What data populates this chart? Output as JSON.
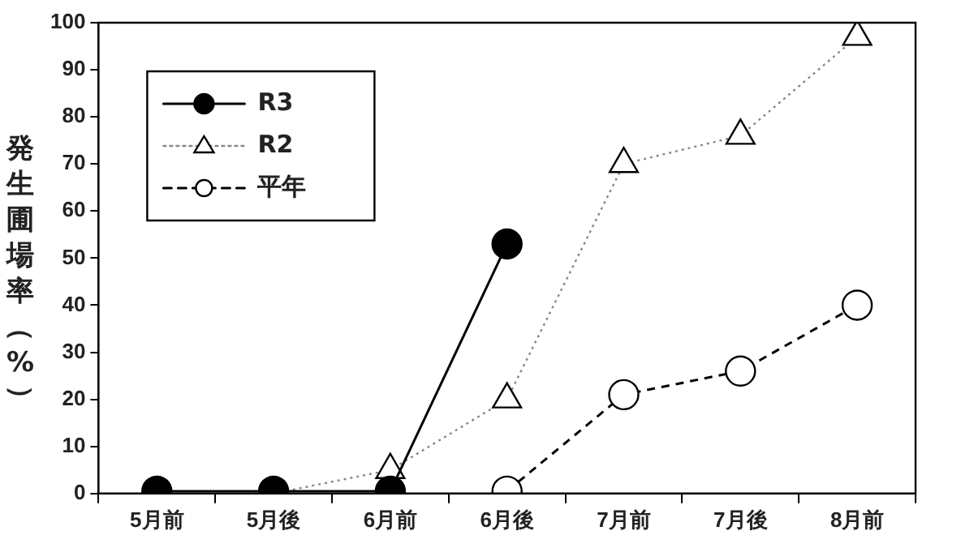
{
  "chart_data": {
    "type": "line",
    "ylabel": "発生圃場率（%）",
    "categories": [
      "5月前",
      "5月後",
      "6月前",
      "6月後",
      "7月前",
      "7月後",
      "8月前"
    ],
    "series": [
      {
        "name": "R3",
        "color": "#000000",
        "marker": "circle",
        "line_style": "solid",
        "values": [
          0.5,
          0.5,
          0.5,
          53,
          null,
          null,
          null
        ]
      },
      {
        "name": "R2",
        "color": "#888888",
        "marker": "triangle",
        "line_style": "dotted",
        "values": [
          0,
          0,
          5,
          20,
          70,
          76,
          97
        ]
      },
      {
        "name": "平年",
        "color": "#000000",
        "marker": "circle",
        "line_style": "dashed",
        "values": [
          null,
          null,
          null,
          0.5,
          21,
          26,
          40
        ]
      }
    ],
    "ylim": [
      0,
      100
    ],
    "yticks": [
      0,
      10,
      20,
      30,
      40,
      50,
      60,
      70,
      80,
      90,
      100
    ],
    "grid": false,
    "legend": "top left"
  }
}
